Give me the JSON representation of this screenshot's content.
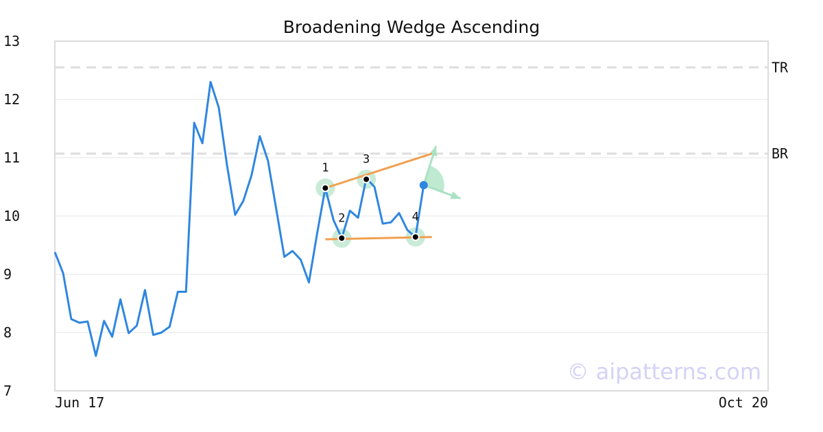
{
  "chart_data": {
    "type": "line",
    "title": "Broadening Wedge Ascending",
    "xlabel": "",
    "ylabel": "",
    "ylim": [
      7,
      13
    ],
    "y_ticks": [
      "7",
      "8",
      "9",
      "10",
      "11",
      "12",
      "13"
    ],
    "x_ticks": [
      "Jun 17",
      "Oct 20"
    ],
    "grid": "horizontal",
    "x_count": 87,
    "series": [
      {
        "color": "#2f86e0",
        "points": [
          [
            0,
            9.38
          ],
          [
            1,
            9.02
          ],
          [
            2,
            8.23
          ],
          [
            3,
            8.17
          ],
          [
            4,
            8.19
          ],
          [
            5,
            7.6
          ],
          [
            6,
            8.2
          ],
          [
            7,
            7.93
          ],
          [
            8,
            8.57
          ],
          [
            9,
            7.99
          ],
          [
            10,
            8.12
          ],
          [
            11,
            8.73
          ],
          [
            12,
            7.96
          ],
          [
            13,
            8.0
          ],
          [
            14,
            8.1
          ],
          [
            15,
            8.7
          ],
          [
            16,
            8.7
          ],
          [
            17,
            11.6
          ],
          [
            18,
            11.25
          ],
          [
            19,
            12.3
          ],
          [
            20,
            11.86
          ],
          [
            21,
            10.88
          ],
          [
            22,
            10.02
          ],
          [
            23,
            10.26
          ],
          [
            24,
            10.7
          ],
          [
            25,
            11.37
          ],
          [
            26,
            10.95
          ],
          [
            27,
            10.13
          ],
          [
            28,
            9.3
          ],
          [
            29,
            9.4
          ],
          [
            30,
            9.25
          ],
          [
            31,
            8.86
          ],
          [
            32,
            9.7
          ],
          [
            33,
            10.48
          ],
          [
            34,
            9.93
          ],
          [
            35,
            9.62
          ],
          [
            36,
            10.09
          ],
          [
            37,
            9.97
          ],
          [
            38,
            10.65
          ],
          [
            39,
            10.5
          ],
          [
            40,
            9.87
          ],
          [
            41,
            9.89
          ],
          [
            42,
            10.05
          ],
          [
            43,
            9.76
          ],
          [
            44,
            9.64
          ],
          [
            45,
            10.53
          ]
        ]
      }
    ],
    "levels": [
      {
        "label": "TR",
        "y": 12.55
      },
      {
        "label": "BR",
        "y": 11.07
      }
    ],
    "pattern_points": [
      {
        "label": "1",
        "x": 33,
        "y": 10.48
      },
      {
        "label": "2",
        "x": 35,
        "y": 9.62
      },
      {
        "label": "3",
        "x": 38,
        "y": 10.63
      },
      {
        "label": "4",
        "x": 44,
        "y": 9.64
      }
    ],
    "trendlines": [
      {
        "from": [
          33,
          10.48
        ],
        "to": [
          46,
          11.07
        ],
        "color": "#f0a050"
      },
      {
        "from": [
          33,
          9.6
        ],
        "to": [
          46,
          9.64
        ],
        "color": "#f0a050"
      }
    ],
    "current_point": {
      "x": 45,
      "y": 10.53,
      "color": "#2f86e0"
    },
    "arrows": [
      {
        "to": [
          46.5,
          11.2
        ]
      },
      {
        "to": [
          49.5,
          10.3
        ]
      }
    ],
    "accent_color": "#2f86e0",
    "trendline_color": "#f0a050",
    "marker_ring_color": "#bfe8d0",
    "arrow_color": "#a9e2c2",
    "watermark": "© aipatterns.com",
    "watermark_color": "#d4d2f6"
  }
}
